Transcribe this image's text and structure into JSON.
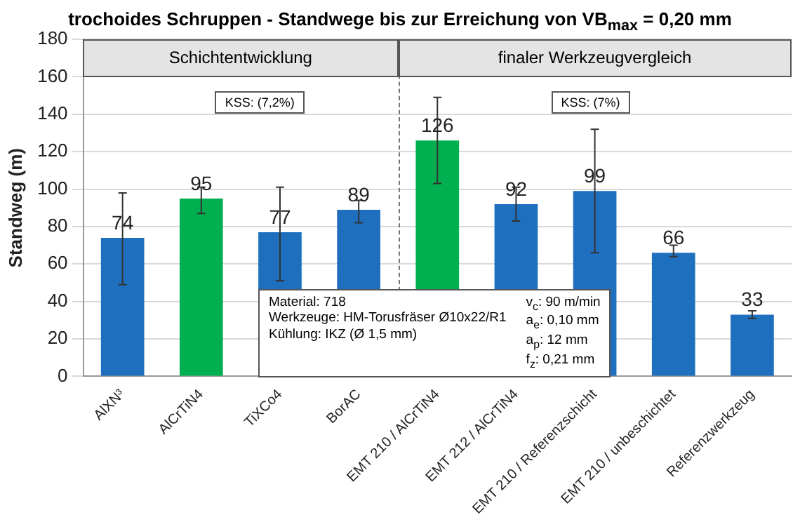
{
  "chart_data": {
    "type": "bar",
    "title": "trochoides Schruppen - Standwege bis zur Erreichung von VB$_{max}$ = 0,20 mm",
    "ylabel": "Standweg (m)",
    "categories": [
      "AlXN³",
      "AlCrTiN4",
      "TiXCo4",
      "BorAC",
      "EMT 210 / AlCrTiN4",
      "EMT 212 / AlCrTiN4",
      "EMT 210 / Referenzschicht",
      "EMT 210 / unbeschichtet",
      "Referenzwerkzeug"
    ],
    "values": [
      74,
      95,
      77,
      89,
      126,
      92,
      99,
      66,
      33
    ],
    "colors": [
      "#1f6fbf",
      "#00b050",
      "#1f6fbf",
      "#1f6fbf",
      "#00b050",
      "#1f6fbf",
      "#1f6fbf",
      "#1f6fbf",
      "#1f6fbf"
    ],
    "errors": [
      [
        49,
        98
      ],
      [
        87,
        101
      ],
      [
        51,
        101
      ],
      [
        82,
        94
      ],
      [
        103,
        149
      ],
      [
        83,
        101
      ],
      [
        66,
        132
      ],
      [
        64,
        70
      ],
      [
        31,
        35
      ]
    ],
    "data_labels": true,
    "ylim": [
      0,
      180
    ],
    "yticks": [
      0,
      20,
      40,
      60,
      80,
      100,
      120,
      140,
      160,
      180
    ],
    "grid": "y",
    "legend": false,
    "annotations": [
      "Schichtentwicklung",
      "finaler Werkzeugvergleich",
      "KSS: (7,2%)",
      "KSS: (7%)",
      "Material: 718",
      "Werkzeuge: HM-Torusfräser Ø10x22/R1",
      "Kühlung: IKZ (Ø 1,5 mm)",
      "v$_{c}$: 90 m/min",
      "a$_{e}$: 0,10 mm",
      "a$_{p}$: 12 mm",
      "f$_{z}$: 0,21 mm"
    ]
  }
}
